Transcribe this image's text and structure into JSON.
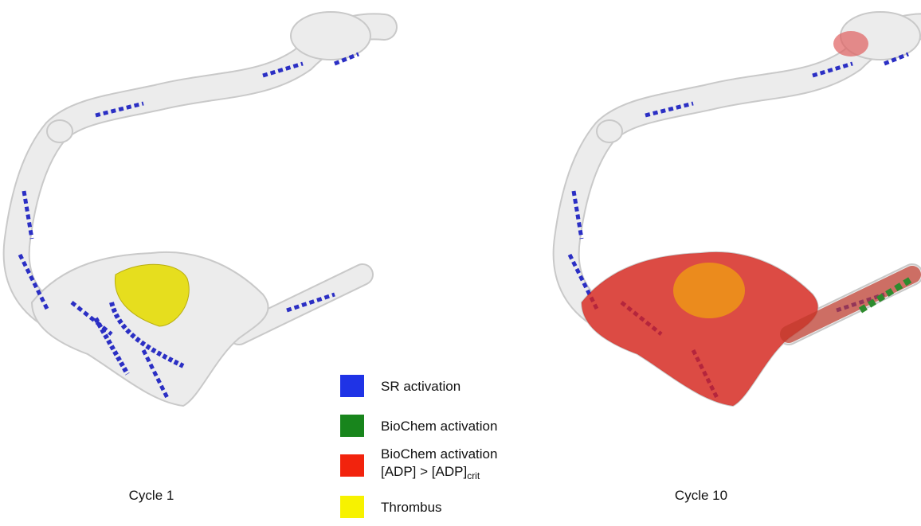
{
  "panels": [
    {
      "label": "Cycle 1"
    },
    {
      "label": "Cycle 10"
    }
  ],
  "legend": [
    {
      "label": "SR activation",
      "color": "#1f33e6"
    },
    {
      "label": "BioChem activation",
      "color": "#18851c"
    },
    {
      "label": "BioChem activation",
      "line2": "[ADP] > [ADP]",
      "subscript": "crit",
      "color": "#f2230d"
    },
    {
      "label": "Thrombus",
      "color": "#f7f200"
    }
  ]
}
